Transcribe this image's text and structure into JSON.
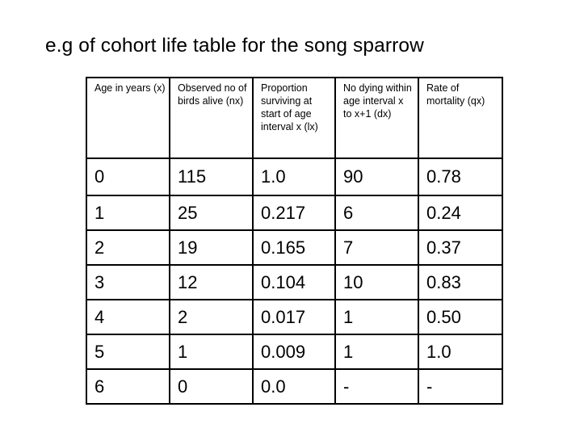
{
  "slide": {
    "title": "e.g of cohort life table for the song sparrow"
  },
  "table": {
    "headers": [
      "Age in years (x)",
      "Observed no of birds alive (nx)",
      "Proportion surviving at start of age interval x (lx)",
      "No dying within age interval x to x+1 (dx)",
      "Rate of mortality (qx)"
    ],
    "rows": [
      [
        "0",
        "115",
        "1.0",
        "90",
        "0.78"
      ],
      [
        "1",
        "25",
        "0.217",
        "6",
        "0.24"
      ],
      [
        "2",
        "19",
        "0.165",
        "7",
        "0.37"
      ],
      [
        "3",
        "12",
        "0.104",
        "10",
        "0.83"
      ],
      [
        "4",
        "2",
        "0.017",
        "1",
        "0.50"
      ],
      [
        "5",
        "1",
        "0.009",
        "1",
        "1.0"
      ],
      [
        "6",
        "0",
        "0.0",
        "-",
        "-"
      ]
    ]
  }
}
